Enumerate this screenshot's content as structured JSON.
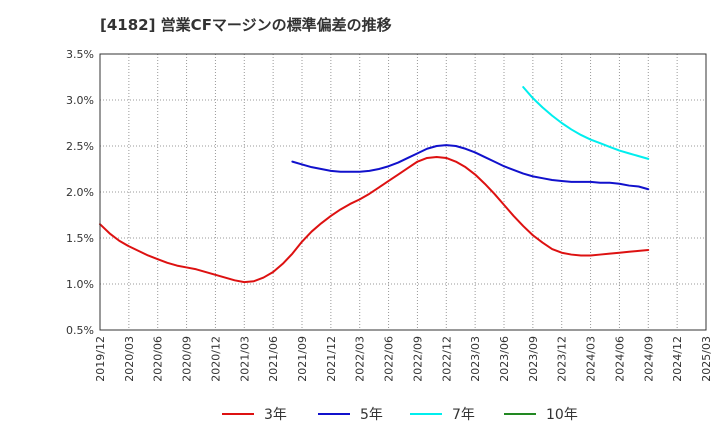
{
  "chart_data": {
    "type": "line",
    "title": "[4182]  営業CFマージンの標準偏差の推移",
    "xlabel": "",
    "ylabel": "",
    "x_ticks": [
      "2019/12",
      "2020/03",
      "2020/06",
      "2020/09",
      "2020/12",
      "2021/03",
      "2021/06",
      "2021/09",
      "2021/12",
      "2022/03",
      "2022/06",
      "2022/09",
      "2022/12",
      "2023/03",
      "2023/06",
      "2023/09",
      "2023/12",
      "2024/03",
      "2024/06",
      "2024/09",
      "2024/12",
      "2025/03"
    ],
    "y_ticks": [
      "0.5%",
      "1.0%",
      "1.5%",
      "2.0%",
      "2.5%",
      "3.0%",
      "3.5%"
    ],
    "ylim": [
      0.5,
      3.5
    ],
    "grid": true,
    "legend_position": "bottom",
    "series": [
      {
        "name": "3年",
        "color": "#dd1111",
        "x": [
          "2019/12",
          "2020/01",
          "2020/02",
          "2020/03",
          "2020/04",
          "2020/05",
          "2020/06",
          "2020/07",
          "2020/08",
          "2020/09",
          "2020/10",
          "2020/11",
          "2020/12",
          "2021/01",
          "2021/02",
          "2021/03",
          "2021/04",
          "2021/05",
          "2021/06",
          "2021/07",
          "2021/08",
          "2021/09",
          "2021/10",
          "2021/11",
          "2021/12",
          "2022/01",
          "2022/02",
          "2022/03",
          "2022/04",
          "2022/05",
          "2022/06",
          "2022/07",
          "2022/08",
          "2022/09",
          "2022/10",
          "2022/11",
          "2022/12",
          "2023/01",
          "2023/02",
          "2023/03",
          "2023/04",
          "2023/05",
          "2023/06",
          "2023/07",
          "2023/08",
          "2023/09",
          "2023/10",
          "2023/11",
          "2023/12",
          "2024/01",
          "2024/02",
          "2024/03",
          "2024/04",
          "2024/05",
          "2024/06",
          "2024/07",
          "2024/08",
          "2024/09"
        ],
        "values": [
          1.65,
          1.55,
          1.47,
          1.41,
          1.36,
          1.31,
          1.27,
          1.23,
          1.2,
          1.18,
          1.16,
          1.13,
          1.1,
          1.07,
          1.04,
          1.02,
          1.03,
          1.07,
          1.13,
          1.22,
          1.33,
          1.46,
          1.57,
          1.66,
          1.74,
          1.81,
          1.87,
          1.92,
          1.98,
          2.05,
          2.12,
          2.19,
          2.26,
          2.33,
          2.37,
          2.38,
          2.37,
          2.33,
          2.27,
          2.19,
          2.09,
          1.98,
          1.86,
          1.74,
          1.63,
          1.53,
          1.45,
          1.38,
          1.34,
          1.32,
          1.31,
          1.31,
          1.32,
          1.33,
          1.34,
          1.35,
          1.36,
          1.37
        ]
      },
      {
        "name": "5年",
        "color": "#1111cc",
        "x": [
          "2021/08",
          "2021/09",
          "2021/10",
          "2021/11",
          "2021/12",
          "2022/01",
          "2022/02",
          "2022/03",
          "2022/04",
          "2022/05",
          "2022/06",
          "2022/07",
          "2022/08",
          "2022/09",
          "2022/10",
          "2022/11",
          "2022/12",
          "2023/01",
          "2023/02",
          "2023/03",
          "2023/04",
          "2023/05",
          "2023/06",
          "2023/07",
          "2023/08",
          "2023/09",
          "2023/10",
          "2023/11",
          "2023/12",
          "2024/01",
          "2024/02",
          "2024/03",
          "2024/04",
          "2024/05",
          "2024/06",
          "2024/07",
          "2024/08",
          "2024/09"
        ],
        "values": [
          2.33,
          2.3,
          2.27,
          2.25,
          2.23,
          2.22,
          2.22,
          2.22,
          2.23,
          2.25,
          2.28,
          2.32,
          2.37,
          2.42,
          2.47,
          2.5,
          2.51,
          2.5,
          2.47,
          2.43,
          2.38,
          2.33,
          2.28,
          2.24,
          2.2,
          2.17,
          2.15,
          2.13,
          2.12,
          2.11,
          2.11,
          2.11,
          2.1,
          2.1,
          2.09,
          2.07,
          2.06,
          2.03
        ]
      },
      {
        "name": "7年",
        "color": "#00eeee",
        "x": [
          "2023/08",
          "2023/09",
          "2023/10",
          "2023/11",
          "2023/12",
          "2024/01",
          "2024/02",
          "2024/03",
          "2024/04",
          "2024/05",
          "2024/06",
          "2024/07",
          "2024/08",
          "2024/09"
        ],
        "values": [
          3.14,
          3.02,
          2.92,
          2.83,
          2.75,
          2.68,
          2.62,
          2.57,
          2.53,
          2.49,
          2.45,
          2.42,
          2.39,
          2.36
        ]
      },
      {
        "name": "10年",
        "color": "#228822",
        "x": [],
        "values": []
      }
    ]
  }
}
